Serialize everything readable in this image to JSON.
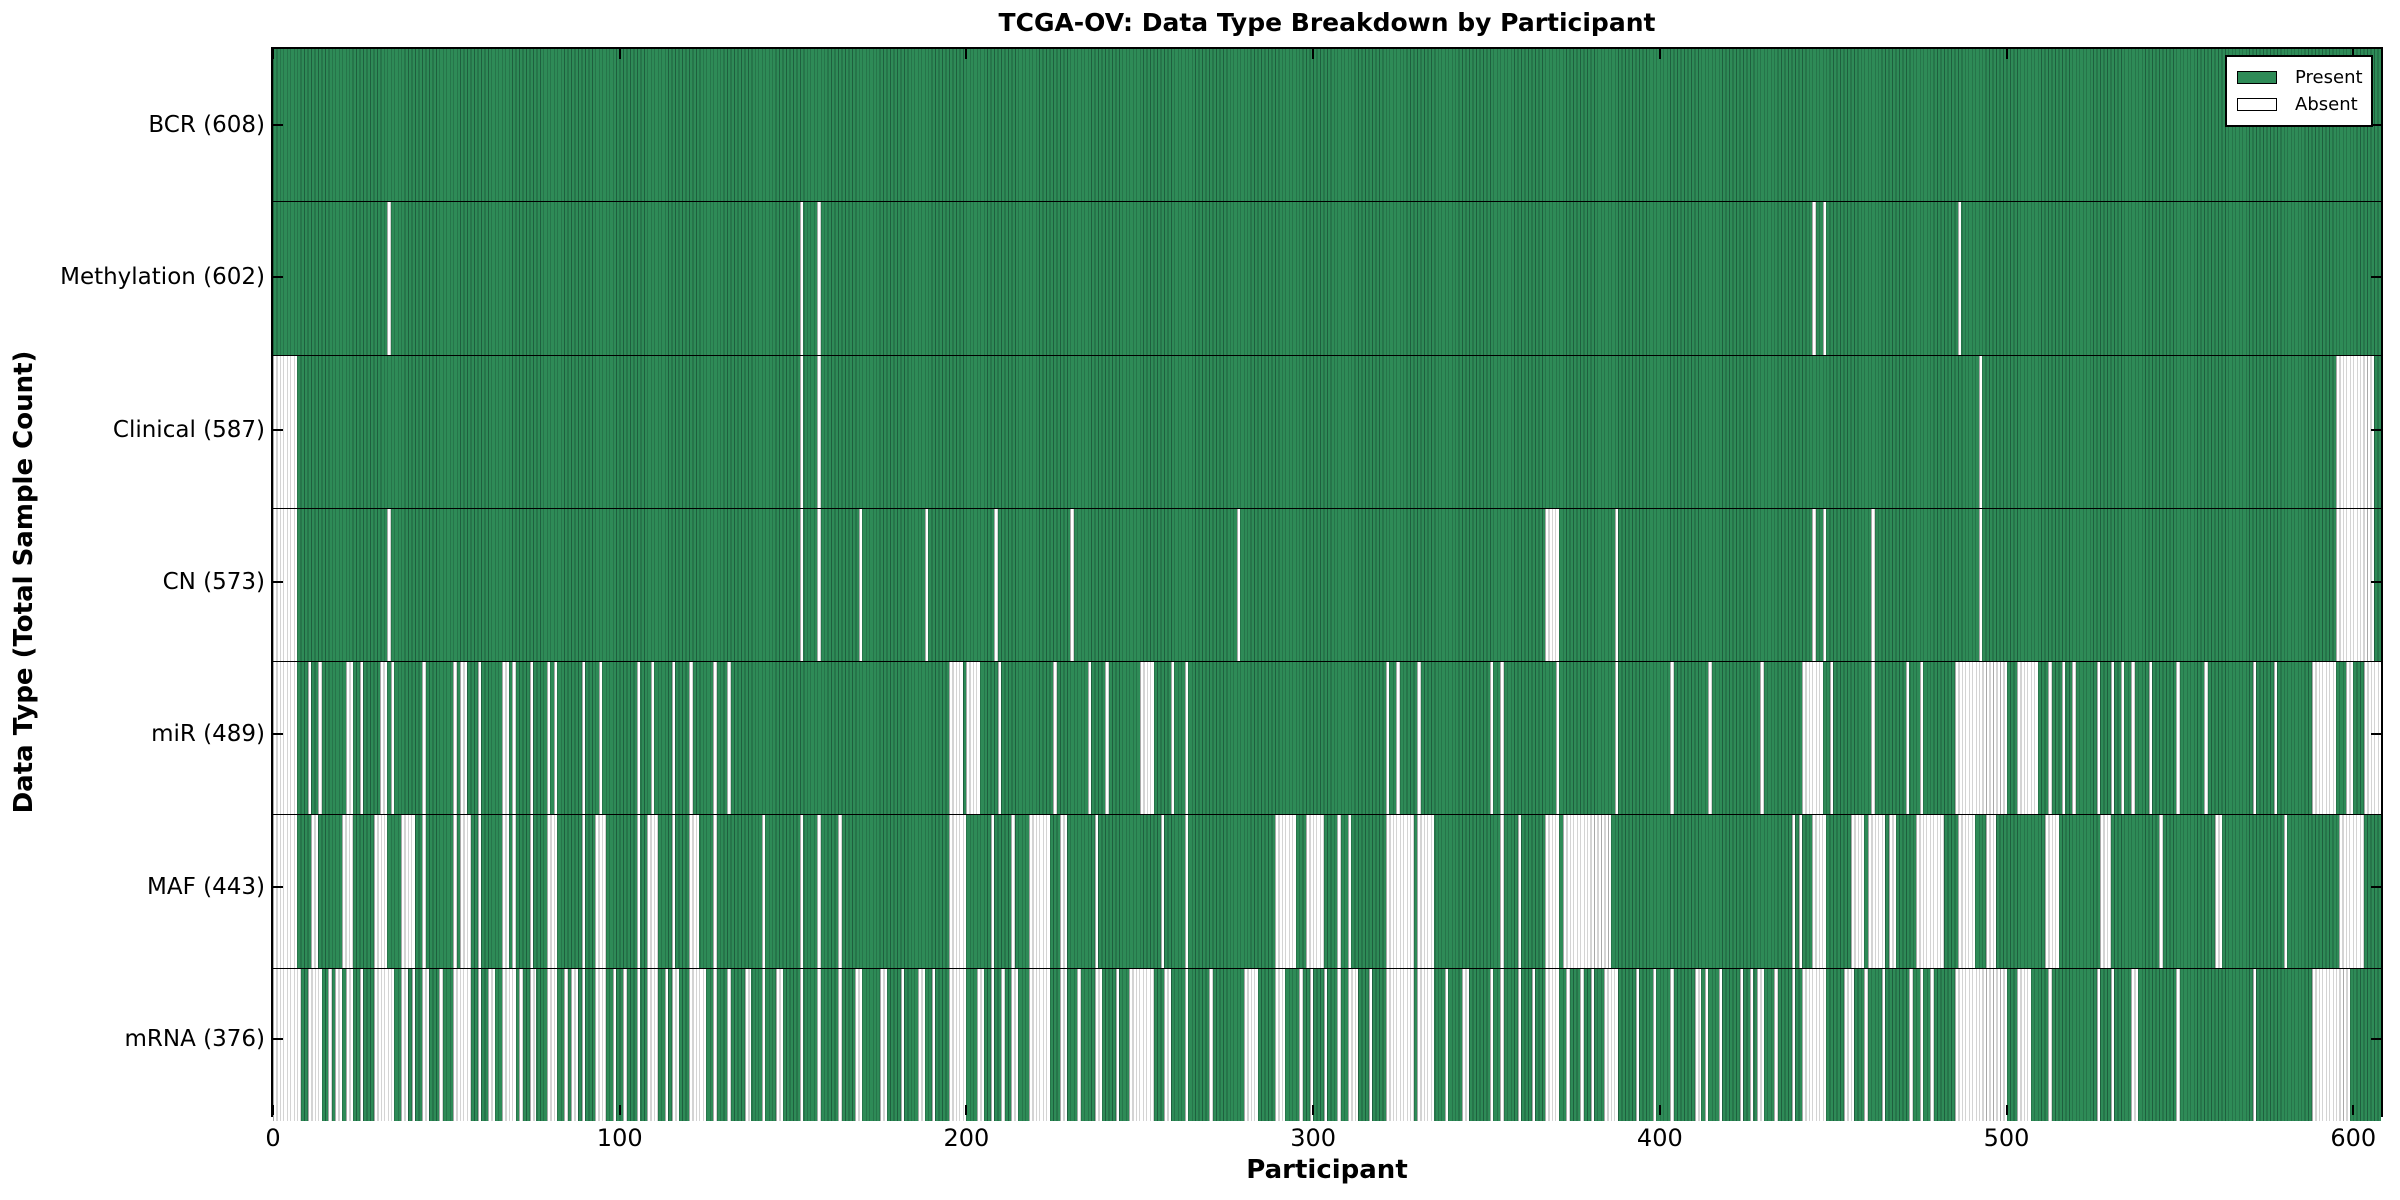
{
  "title": "TCGA-OV: Data Type Breakdown by Participant",
  "axis": {
    "xlabel": "Participant",
    "ylabel": "Data Type (Total Sample Count)"
  },
  "legend": {
    "present_label": "Present",
    "absent_label": "Absent"
  },
  "colors": {
    "present_fill": "#2e8b57",
    "present_edge": "#1e5f3e",
    "absent_fill": "#ffffff",
    "absent_edge": "#a8a8a8",
    "axis_color": "#000000"
  },
  "chart_data": {
    "type": "heatmap",
    "title": "TCGA-OV: Data Type Breakdown by Participant",
    "xlabel": "Participant",
    "ylabel": "Data Type (Total Sample Count)",
    "legend_entries": [
      "Present",
      "Absent"
    ],
    "legend_position": "upper right",
    "grid": false,
    "n_participants": 608,
    "x_range": [
      0,
      608
    ],
    "x_ticks": [
      0,
      100,
      200,
      300,
      400,
      500,
      600
    ],
    "rows": [
      {
        "name": "BCR",
        "label": "BCR (608)",
        "present_count": 608,
        "absent_count": 0,
        "absent_ranges": []
      },
      {
        "name": "Methylation",
        "label": "Methylation (602)",
        "present_count": 602,
        "absent_count": 6,
        "absent_ranges": [
          [
            33,
            33
          ],
          [
            152,
            152
          ],
          [
            157,
            157
          ],
          [
            444,
            444
          ],
          [
            447,
            447
          ],
          [
            486,
            486
          ]
        ]
      },
      {
        "name": "Clinical",
        "label": "Clinical (587)",
        "present_count": 587,
        "absent_count": 21,
        "absent_ranges": [
          [
            0,
            6
          ],
          [
            152,
            152
          ],
          [
            157,
            157
          ],
          [
            492,
            492
          ],
          [
            595,
            605
          ]
        ]
      },
      {
        "name": "CN",
        "label": "CN (573)",
        "present_count": 573,
        "absent_count": 35,
        "absent_ranges": [
          [
            0,
            6
          ],
          [
            33,
            33
          ],
          [
            152,
            152
          ],
          [
            157,
            157
          ],
          [
            169,
            169
          ],
          [
            188,
            188
          ],
          [
            208,
            208
          ],
          [
            230,
            230
          ],
          [
            278,
            278
          ],
          [
            367,
            370
          ],
          [
            387,
            387
          ],
          [
            444,
            444
          ],
          [
            447,
            447
          ],
          [
            461,
            461
          ],
          [
            492,
            492
          ],
          [
            595,
            605
          ]
        ]
      },
      {
        "name": "miR",
        "label": "miR (489)",
        "present_count": 489,
        "absent_count": 119,
        "absent_ranges": [
          [
            0,
            6
          ],
          [
            10,
            10
          ],
          [
            13,
            13
          ],
          [
            21,
            22
          ],
          [
            25,
            25
          ],
          [
            31,
            32
          ],
          [
            34,
            34
          ],
          [
            43,
            43
          ],
          [
            52,
            52
          ],
          [
            54,
            55
          ],
          [
            59,
            59
          ],
          [
            66,
            67
          ],
          [
            69,
            69
          ],
          [
            74,
            74
          ],
          [
            79,
            79
          ],
          [
            81,
            81
          ],
          [
            89,
            89
          ],
          [
            94,
            94
          ],
          [
            105,
            105
          ],
          [
            109,
            109
          ],
          [
            115,
            115
          ],
          [
            120,
            120
          ],
          [
            127,
            127
          ],
          [
            131,
            131
          ],
          [
            195,
            198
          ],
          [
            200,
            203
          ],
          [
            209,
            209
          ],
          [
            225,
            225
          ],
          [
            235,
            235
          ],
          [
            240,
            240
          ],
          [
            250,
            253
          ],
          [
            259,
            259
          ],
          [
            263,
            263
          ],
          [
            321,
            321
          ],
          [
            324,
            324
          ],
          [
            330,
            330
          ],
          [
            351,
            351
          ],
          [
            354,
            354
          ],
          [
            370,
            370
          ],
          [
            387,
            387
          ],
          [
            403,
            403
          ],
          [
            414,
            414
          ],
          [
            429,
            429
          ],
          [
            441,
            446
          ],
          [
            449,
            449
          ],
          [
            461,
            461
          ],
          [
            471,
            471
          ],
          [
            475,
            475
          ],
          [
            485,
            499
          ],
          [
            503,
            508
          ],
          [
            512,
            512
          ],
          [
            516,
            516
          ],
          [
            519,
            519
          ],
          [
            526,
            526
          ],
          [
            530,
            530
          ],
          [
            533,
            533
          ],
          [
            536,
            536
          ],
          [
            541,
            541
          ],
          [
            549,
            549
          ],
          [
            557,
            557
          ],
          [
            571,
            571
          ],
          [
            577,
            577
          ],
          [
            588,
            594
          ],
          [
            598,
            599
          ],
          [
            603,
            607
          ]
        ]
      },
      {
        "name": "MAF",
        "label": "MAF (443)",
        "present_count": 443,
        "absent_count": 165,
        "absent_ranges": [
          [
            0,
            6
          ],
          [
            11,
            12
          ],
          [
            20,
            22
          ],
          [
            29,
            32
          ],
          [
            37,
            40
          ],
          [
            43,
            43
          ],
          [
            52,
            52
          ],
          [
            54,
            56
          ],
          [
            59,
            59
          ],
          [
            66,
            67
          ],
          [
            69,
            69
          ],
          [
            74,
            74
          ],
          [
            79,
            81
          ],
          [
            89,
            89
          ],
          [
            93,
            95
          ],
          [
            105,
            105
          ],
          [
            108,
            110
          ],
          [
            115,
            115
          ],
          [
            120,
            122
          ],
          [
            127,
            127
          ],
          [
            141,
            141
          ],
          [
            152,
            152
          ],
          [
            157,
            157
          ],
          [
            163,
            163
          ],
          [
            195,
            199
          ],
          [
            207,
            207
          ],
          [
            213,
            213
          ],
          [
            218,
            223
          ],
          [
            227,
            228
          ],
          [
            237,
            237
          ],
          [
            256,
            256
          ],
          [
            263,
            263
          ],
          [
            289,
            294
          ],
          [
            298,
            302
          ],
          [
            307,
            307
          ],
          [
            310,
            310
          ],
          [
            321,
            328
          ],
          [
            330,
            334
          ],
          [
            354,
            354
          ],
          [
            359,
            359
          ],
          [
            367,
            370
          ],
          [
            372,
            385
          ],
          [
            438,
            438
          ],
          [
            440,
            440
          ],
          [
            444,
            447
          ],
          [
            455,
            458
          ],
          [
            460,
            464
          ],
          [
            466,
            467
          ],
          [
            474,
            481
          ],
          [
            486,
            490
          ],
          [
            494,
            496
          ],
          [
            511,
            514
          ],
          [
            527,
            529
          ],
          [
            544,
            544
          ],
          [
            560,
            561
          ],
          [
            580,
            580
          ],
          [
            596,
            602
          ]
        ]
      },
      {
        "name": "mRNA",
        "label": "mRNA (376)",
        "present_count": 376,
        "absent_count": 232,
        "absent_ranges": [
          [
            0,
            7
          ],
          [
            10,
            13
          ],
          [
            16,
            16
          ],
          [
            18,
            19
          ],
          [
            21,
            22
          ],
          [
            25,
            25
          ],
          [
            29,
            34
          ],
          [
            37,
            38
          ],
          [
            40,
            40
          ],
          [
            43,
            44
          ],
          [
            48,
            48
          ],
          [
            52,
            56
          ],
          [
            59,
            59
          ],
          [
            62,
            63
          ],
          [
            66,
            69
          ],
          [
            71,
            71
          ],
          [
            74,
            75
          ],
          [
            79,
            81
          ],
          [
            84,
            84
          ],
          [
            86,
            87
          ],
          [
            89,
            89
          ],
          [
            93,
            95
          ],
          [
            98,
            98
          ],
          [
            101,
            101
          ],
          [
            105,
            105
          ],
          [
            108,
            110
          ],
          [
            113,
            113
          ],
          [
            115,
            116
          ],
          [
            120,
            124
          ],
          [
            127,
            127
          ],
          [
            131,
            131
          ],
          [
            136,
            137
          ],
          [
            141,
            141
          ],
          [
            145,
            146
          ],
          [
            152,
            152
          ],
          [
            157,
            157
          ],
          [
            163,
            163
          ],
          [
            168,
            169
          ],
          [
            175,
            176
          ],
          [
            181,
            181
          ],
          [
            186,
            187
          ],
          [
            190,
            190
          ],
          [
            195,
            199
          ],
          [
            203,
            204
          ],
          [
            207,
            207
          ],
          [
            210,
            210
          ],
          [
            213,
            214
          ],
          [
            218,
            223
          ],
          [
            227,
            228
          ],
          [
            232,
            232
          ],
          [
            237,
            238
          ],
          [
            243,
            243
          ],
          [
            247,
            253
          ],
          [
            257,
            258
          ],
          [
            263,
            263
          ],
          [
            270,
            270
          ],
          [
            280,
            283
          ],
          [
            289,
            291
          ],
          [
            296,
            296
          ],
          [
            299,
            299
          ],
          [
            303,
            303
          ],
          [
            307,
            307
          ],
          [
            310,
            312
          ],
          [
            316,
            316
          ],
          [
            321,
            328
          ],
          [
            330,
            334
          ],
          [
            338,
            338
          ],
          [
            343,
            344
          ],
          [
            351,
            351
          ],
          [
            354,
            354
          ],
          [
            359,
            359
          ],
          [
            363,
            363
          ],
          [
            367,
            370
          ],
          [
            373,
            373
          ],
          [
            377,
            377
          ],
          [
            380,
            380
          ],
          [
            384,
            387
          ],
          [
            393,
            393
          ],
          [
            398,
            398
          ],
          [
            403,
            403
          ],
          [
            410,
            411
          ],
          [
            413,
            413
          ],
          [
            417,
            417
          ],
          [
            423,
            423
          ],
          [
            426,
            426
          ],
          [
            428,
            429
          ],
          [
            433,
            433
          ],
          [
            438,
            438
          ],
          [
            441,
            447
          ],
          [
            453,
            455
          ],
          [
            459,
            459
          ],
          [
            464,
            464
          ],
          [
            472,
            472
          ],
          [
            475,
            475
          ],
          [
            478,
            478
          ],
          [
            485,
            499
          ],
          [
            503,
            506
          ],
          [
            512,
            512
          ],
          [
            526,
            526
          ],
          [
            530,
            530
          ],
          [
            536,
            537
          ],
          [
            549,
            549
          ],
          [
            571,
            571
          ],
          [
            588,
            598
          ]
        ]
      }
    ]
  }
}
